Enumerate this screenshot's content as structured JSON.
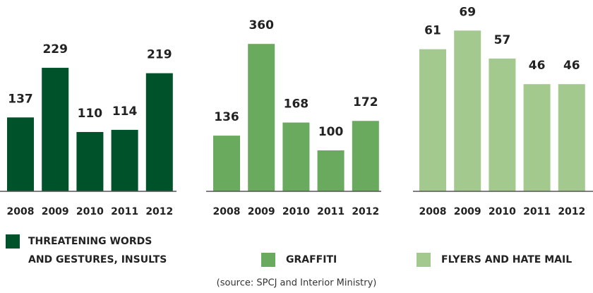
{
  "chart_data": [
    {
      "type": "bar",
      "name": [
        "THREATENING WORDS",
        "AND GESTURES, INSULTS"
      ],
      "color": "#00522a",
      "categories": [
        "2008",
        "2009",
        "2010",
        "2011",
        "2012"
      ],
      "values": [
        137,
        229,
        110,
        114,
        219
      ]
    },
    {
      "type": "bar",
      "name": [
        "GRAFFITI"
      ],
      "color": "#6aaa5f",
      "categories": [
        "2008",
        "2009",
        "2010",
        "2011",
        "2012"
      ],
      "values": [
        136,
        360,
        168,
        100,
        172
      ]
    },
    {
      "type": "bar",
      "name": [
        "FLYERS AND HATE MAIL"
      ],
      "color": "#a3c98f",
      "categories": [
        "2008",
        "2009",
        "2010",
        "2011",
        "2012"
      ],
      "values": [
        61,
        69,
        57,
        46,
        46
      ]
    }
  ],
  "source": "(source: SPCJ and Interior Ministry)"
}
